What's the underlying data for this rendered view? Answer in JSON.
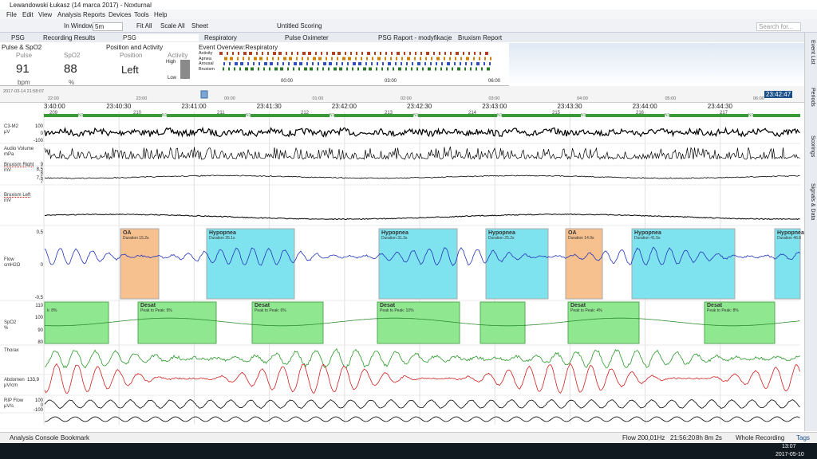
{
  "window": {
    "title": "Lewandowski Łukasz (14 marca 2017) - Noxturnal"
  },
  "menu": [
    "File",
    "Edit",
    "View",
    "Analysis",
    "Reports",
    "Devices",
    "Tools",
    "Help"
  ],
  "toolbar": {
    "in_window_label": "In Window:",
    "in_window_value": "5m",
    "fit_all": "Fit All",
    "scale_all": "Scale All",
    "sheet": "Sheet",
    "scoring": "Untitled Scoring",
    "search_placeholder": "Search for..."
  },
  "tabs": [
    "PSG",
    "Recording Results",
    "PSG",
    "Respiratory",
    "Pulse Oximeter",
    "PSG Raport - modyfikacje",
    "Bruxism Report"
  ],
  "pulse_spo2": {
    "title": "Pulse & SpO2",
    "pulse_label": "Pulse",
    "pulse_value": "91",
    "pulse_unit": "bpm",
    "spo2_label": "SpO2",
    "spo2_value": "88",
    "spo2_unit": "%"
  },
  "position_activity": {
    "title": "Position and Activity",
    "position_label": "Position",
    "position_value": "Left",
    "activity_label": "Activity",
    "high": "High",
    "low": "Low"
  },
  "event_overview": {
    "title": "Event Overview:Respiratory",
    "rows": [
      "Activity",
      "Apnea",
      "Arousal",
      "Bruxism"
    ],
    "times": [
      "00:00",
      "03:00",
      "06:00"
    ]
  },
  "overview_timeline": {
    "start": "2017-03-14 21:58:07",
    "current": "23:42:47",
    "hours": [
      "22:00",
      "23:00",
      "00:00",
      "01:00",
      "02:00",
      "03:00",
      "04:00",
      "05:00",
      "06:00"
    ]
  },
  "time_axis": [
    "3:40:00",
    "23:40:30",
    "23:41:00",
    "23:41:30",
    "23:42:00",
    "23:42:30",
    "23:43:00",
    "23:43:30",
    "23:44:00",
    "23:44:30"
  ],
  "hypnogram": {
    "epochs": [
      "209",
      "210",
      "211",
      "212",
      "213",
      "214",
      "215",
      "216",
      "217"
    ],
    "stage": "N1"
  },
  "channels": [
    {
      "label": "C3-M2",
      "unit": "μV",
      "ticks": [
        "100",
        "0",
        "-100"
      ]
    },
    {
      "label": "Audio Volume",
      "unit": "mPa",
      "ticks": []
    },
    {
      "label": "Bruxism Right",
      "unit": "mV",
      "ticks": [
        "9",
        "8,5",
        "8",
        "7,5",
        "7"
      ]
    },
    {
      "label": "Bruxism Left",
      "unit": "mV",
      "ticks": []
    },
    {
      "label": "Flow",
      "unit": "cmH2O",
      "ticks": [
        "0,5",
        "0",
        "-0,5"
      ]
    },
    {
      "label": "SpO2",
      "unit": "%",
      "ticks": [
        "110",
        "100",
        "90",
        "80"
      ]
    },
    {
      "label": "Thorax",
      "unit": "",
      "ticks": []
    },
    {
      "label": "Abdomen",
      "unit": "μV/cm",
      "ticks": [
        "133,9"
      ]
    },
    {
      "label": "RIP Flow",
      "unit": "μV/s",
      "ticks": [
        "100",
        "0",
        "-100"
      ]
    }
  ],
  "flow_events": [
    {
      "type": "OA",
      "duration": "Duration 15.2s"
    },
    {
      "type": "Hypopnea",
      "duration": "Duration 35.1s"
    },
    {
      "type": "Hypopnea",
      "duration": "Duration 31.3s"
    },
    {
      "type": "Hypopnea",
      "duration": "Duration 25.2s"
    },
    {
      "type": "OA",
      "duration": "Duration 14.9s"
    },
    {
      "type": "Hypopnea",
      "duration": "Duration 41.5s"
    },
    {
      "type": "Hypopnea",
      "duration": "Duration 46.8"
    }
  ],
  "desat_events": [
    {
      "type": "",
      "detail": "k: 8%"
    },
    {
      "type": "Desat",
      "detail": "Peak to Peak: 9%"
    },
    {
      "type": "Desat",
      "detail": "Peak to Peak: 6%"
    },
    {
      "type": "Desat",
      "detail": "Peak to Peak: 10%"
    },
    {
      "type": "",
      "detail": ""
    },
    {
      "type": "Desat",
      "detail": "Peak to Peak: 4%"
    },
    {
      "type": "Desat",
      "detail": "Peak to Peak: 8%"
    }
  ],
  "status_bar": {
    "console": "Analysis Console",
    "bookmark": "Bookmark",
    "signal": "Flow 200,01Hz",
    "time": "21:56:20",
    "duration": "8h 8m 2s",
    "range": "Whole Recording",
    "tags": "Tags"
  },
  "side_tabs": [
    "Event List",
    "Periods",
    "Scorings",
    "Signals & Data"
  ],
  "taskbar": {
    "time": "13:07",
    "date": "2017-05-10"
  }
}
